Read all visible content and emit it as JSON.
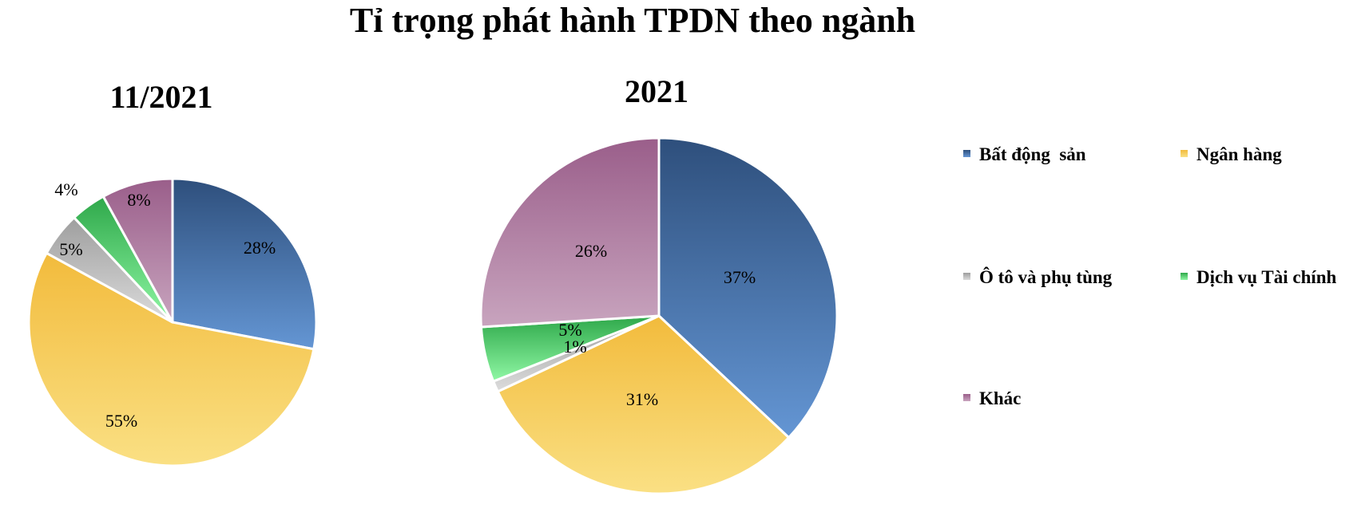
{
  "title": "Tỉ trọng phát hành TPDN theo ngành",
  "legend": {
    "items": [
      {
        "label": "Bất động  sản",
        "color": "#4f7fbf"
      },
      {
        "label": "Ngân hàng",
        "color": "#f5c04a"
      },
      {
        "label": "Ô tô và phụ tùng",
        "color": "#b8b8b8"
      },
      {
        "label": "Dịch vụ Tài chính",
        "color": "#3dbb5a"
      },
      {
        "label": "Khác",
        "color": "#a86e98"
      }
    ]
  },
  "chart_data": [
    {
      "type": "pie",
      "title": "11/2021",
      "categories": [
        "Bất động  sản",
        "Ngân hàng",
        "Ô tô và phụ tùng",
        "Dịch vụ Tài chính",
        "Khác"
      ],
      "values": [
        28,
        55,
        5,
        4,
        8
      ],
      "labels": [
        "28%",
        "55%",
        "5%",
        "4%",
        "8%"
      ]
    },
    {
      "type": "pie",
      "title": "2021",
      "categories": [
        "Bất động  sản",
        "Ngân hàng",
        "Ô tô và phụ tùng",
        "Dịch vụ Tài chính",
        "Khác"
      ],
      "values": [
        37,
        31,
        1,
        5,
        26
      ],
      "labels": [
        "37%",
        "31%",
        "1%",
        "5%",
        "26%"
      ]
    }
  ]
}
